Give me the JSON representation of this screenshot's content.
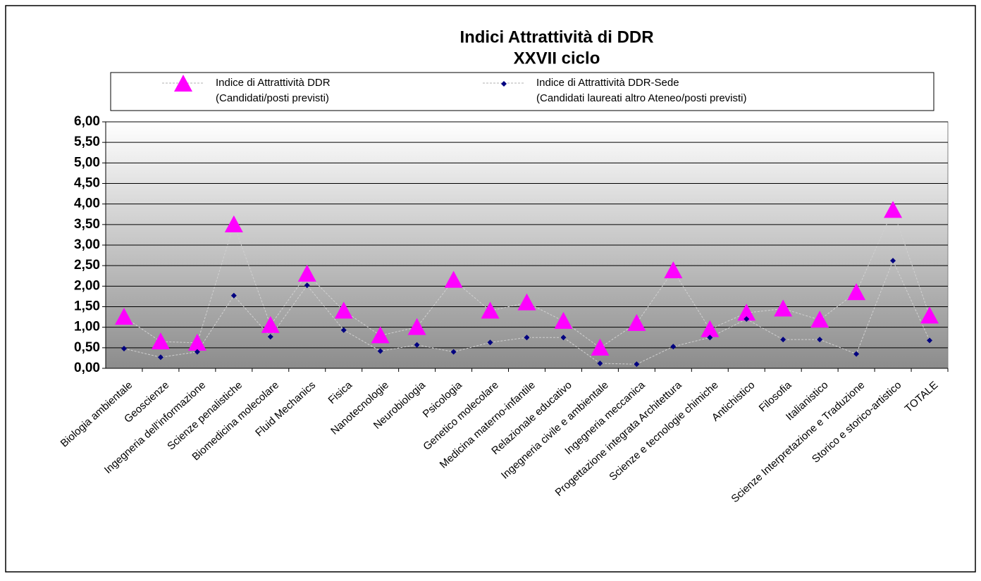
{
  "chart_data": {
    "type": "line",
    "title": "Indici Attrattività di DDR",
    "subtitle": "XXVII  ciclo",
    "categories": [
      "Biologia ambientale",
      "Geoscienze",
      "Ingegneria dell'informazione",
      "Scienze penalistiche",
      "Biomedicina molecolare",
      "Fluid Mechanics",
      "Fisica",
      "Nanotecnologie",
      "Neurobiologia",
      "Psicologia",
      "Genetico molecolare",
      "Medicina materno-infantile",
      "Relazionale educativo",
      "Ingegneria civile e ambientale",
      "Ingegneria meccanica",
      "Progettazione integrata Architettura",
      "Scienze e tecnologie chimiche",
      "Antichistico",
      "Filosofia",
      "Italianistico",
      "Scienze Interpretazione e Traduzione",
      "Storico e storico-artistico",
      "TOTALE"
    ],
    "series": [
      {
        "name": "Indice di Attrattività DDR",
        "detail": "(Candidati/posti previsti)",
        "color": "#ff00ff",
        "marker": "triangle",
        "values": [
          1.25,
          0.65,
          0.62,
          3.5,
          1.05,
          2.3,
          1.4,
          0.8,
          1.0,
          2.15,
          1.4,
          1.6,
          1.15,
          0.5,
          1.1,
          2.38,
          0.95,
          1.35,
          1.45,
          1.18,
          1.85,
          3.85,
          1.28
        ]
      },
      {
        "name": "Indice di Attrattività DDR-Sede",
        "detail": "(Candidati laureati altro  Ateneo/posti previsti)",
        "color": "#000080",
        "marker": "diamond",
        "values": [
          0.48,
          0.27,
          0.4,
          1.77,
          0.77,
          2.02,
          0.93,
          0.42,
          0.57,
          0.4,
          0.63,
          0.75,
          0.75,
          0.12,
          0.1,
          0.53,
          0.75,
          1.2,
          0.7,
          0.7,
          0.35,
          2.62,
          0.68
        ]
      }
    ],
    "ylim": [
      0,
      6
    ],
    "yticks": [
      {
        "value": 0,
        "label": "0,00"
      },
      {
        "value": 0.5,
        "label": "0,50"
      },
      {
        "value": 1,
        "label": "1,00"
      },
      {
        "value": 1.5,
        "label": "1,50"
      },
      {
        "value": 2,
        "label": "2,00"
      },
      {
        "value": 2.5,
        "label": "2,50"
      },
      {
        "value": 3,
        "label": "3,00"
      },
      {
        "value": 3.5,
        "label": "3,50"
      },
      {
        "value": 4,
        "label": "4,00"
      },
      {
        "value": 4.5,
        "label": "4,50"
      },
      {
        "value": 5,
        "label": "5,00"
      },
      {
        "value": 5.5,
        "label": "5,50"
      },
      {
        "value": 6,
        "label": "6,00"
      }
    ],
    "grid": true,
    "legend": "top"
  }
}
